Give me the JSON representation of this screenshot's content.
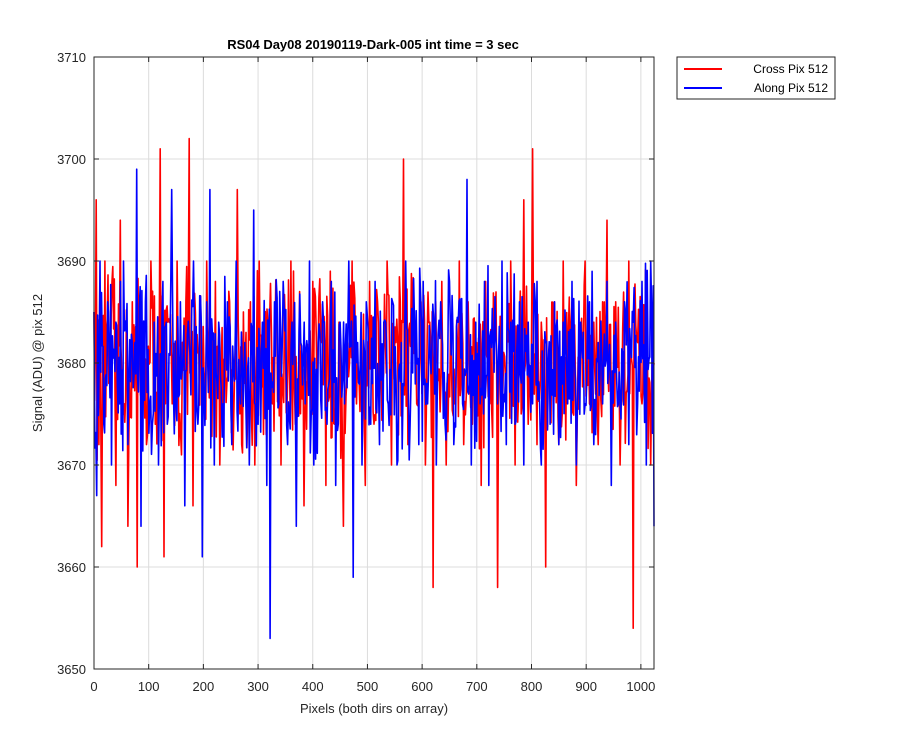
{
  "chart_data": {
    "type": "line",
    "title": "RS04 Day08 20190119-Dark-005 int time = 3 sec",
    "xlabel": "Pixels (both dirs on array)",
    "ylabel": "Signal (ADU) @ pix 512",
    "xlim": [
      0,
      1024
    ],
    "ylim": [
      3650,
      3710
    ],
    "xticks": [
      0,
      100,
      200,
      300,
      400,
      500,
      600,
      700,
      800,
      900,
      1000
    ],
    "yticks": [
      3650,
      3660,
      3670,
      3680,
      3690,
      3700,
      3710
    ],
    "grid": true,
    "legend_position": "outside-top-right",
    "series": [
      {
        "name": "Cross Pix 512",
        "color": "#ff0000",
        "mean": 3680,
        "noise_points": [
          [
            0,
            3685
          ],
          [
            4,
            3696
          ],
          [
            9,
            3672
          ],
          [
            14,
            3662
          ],
          [
            20,
            3690
          ],
          [
            27,
            3678
          ],
          [
            33,
            3688
          ],
          [
            40,
            3668
          ],
          [
            48,
            3694
          ],
          [
            55,
            3676
          ],
          [
            62,
            3664
          ],
          [
            70,
            3686
          ],
          [
            79,
            3660
          ],
          [
            88,
            3682
          ],
          [
            96,
            3672
          ],
          [
            104,
            3690
          ],
          [
            112,
            3674
          ],
          [
            121,
            3701
          ],
          [
            128,
            3661
          ],
          [
            135,
            3684
          ],
          [
            143,
            3676
          ],
          [
            152,
            3690
          ],
          [
            160,
            3671
          ],
          [
            168,
            3686
          ],
          [
            174,
            3702
          ],
          [
            181,
            3666
          ],
          [
            190,
            3681
          ],
          [
            198,
            3674
          ],
          [
            206,
            3690
          ],
          [
            214,
            3676
          ],
          [
            222,
            3688
          ],
          [
            230,
            3670
          ],
          [
            240,
            3682
          ],
          [
            248,
            3686
          ],
          [
            256,
            3676
          ],
          [
            262,
            3697
          ],
          [
            270,
            3672
          ],
          [
            278,
            3683
          ],
          [
            286,
            3686
          ],
          [
            294,
            3670
          ],
          [
            302,
            3690
          ],
          [
            310,
            3673
          ],
          [
            318,
            3684
          ],
          [
            326,
            3676
          ],
          [
            334,
            3686
          ],
          [
            342,
            3670
          ],
          [
            350,
            3683
          ],
          [
            360,
            3690
          ],
          [
            368,
            3674
          ],
          [
            376,
            3687
          ],
          [
            384,
            3666
          ],
          [
            392,
            3680
          ],
          [
            400,
            3688
          ],
          [
            408,
            3676
          ],
          [
            416,
            3682
          ],
          [
            424,
            3668
          ],
          [
            432,
            3689
          ],
          [
            440,
            3674
          ],
          [
            448,
            3684
          ],
          [
            456,
            3664
          ],
          [
            464,
            3682
          ],
          [
            472,
            3690
          ],
          [
            480,
            3676
          ],
          [
            488,
            3680
          ],
          [
            496,
            3668
          ],
          [
            504,
            3688
          ],
          [
            512,
            3674
          ],
          [
            520,
            3684
          ],
          [
            528,
            3678
          ],
          [
            536,
            3690
          ],
          [
            544,
            3670
          ],
          [
            552,
            3682
          ],
          [
            560,
            3686
          ],
          [
            566,
            3700
          ],
          [
            574,
            3672
          ],
          [
            582,
            3682
          ],
          [
            590,
            3676
          ],
          [
            598,
            3686
          ],
          [
            606,
            3670
          ],
          [
            614,
            3684
          ],
          [
            620,
            3658
          ],
          [
            628,
            3680
          ],
          [
            636,
            3688
          ],
          [
            644,
            3670
          ],
          [
            652,
            3684
          ],
          [
            660,
            3676
          ],
          [
            668,
            3690
          ],
          [
            676,
            3672
          ],
          [
            684,
            3686
          ],
          [
            692,
            3674
          ],
          [
            700,
            3682
          ],
          [
            708,
            3668
          ],
          [
            716,
            3688
          ],
          [
            724,
            3676
          ],
          [
            732,
            3682
          ],
          [
            738,
            3658
          ],
          [
            746,
            3684
          ],
          [
            754,
            3676
          ],
          [
            762,
            3690
          ],
          [
            770,
            3670
          ],
          [
            778,
            3684
          ],
          [
            786,
            3696
          ],
          [
            794,
            3674
          ],
          [
            802,
            3701
          ],
          [
            810,
            3672
          ],
          [
            818,
            3684
          ],
          [
            826,
            3660
          ],
          [
            834,
            3682
          ],
          [
            842,
            3686
          ],
          [
            850,
            3672
          ],
          [
            858,
            3690
          ],
          [
            866,
            3676
          ],
          [
            874,
            3686
          ],
          [
            882,
            3668
          ],
          [
            890,
            3682
          ],
          [
            898,
            3690
          ],
          [
            906,
            3676
          ],
          [
            914,
            3684
          ],
          [
            922,
            3672
          ],
          [
            930,
            3686
          ],
          [
            938,
            3694
          ],
          [
            946,
            3674
          ],
          [
            954,
            3686
          ],
          [
            962,
            3670
          ],
          [
            970,
            3682
          ],
          [
            978,
            3690
          ],
          [
            986,
            3654
          ],
          [
            994,
            3682
          ],
          [
            1002,
            3676
          ],
          [
            1010,
            3688
          ],
          [
            1018,
            3670
          ],
          [
            1024,
            3680
          ]
        ]
      },
      {
        "name": "Along Pix 512",
        "color": "#0000ff",
        "mean": 3680,
        "noise_points": [
          [
            0,
            3685
          ],
          [
            5,
            3667
          ],
          [
            11,
            3690
          ],
          [
            18,
            3674
          ],
          [
            25,
            3686
          ],
          [
            32,
            3670
          ],
          [
            40,
            3684
          ],
          [
            47,
            3676
          ],
          [
            54,
            3690
          ],
          [
            62,
            3672
          ],
          [
            70,
            3682
          ],
          [
            78,
            3699
          ],
          [
            86,
            3664
          ],
          [
            94,
            3686
          ],
          [
            102,
            3676
          ],
          [
            110,
            3684
          ],
          [
            118,
            3670
          ],
          [
            126,
            3688
          ],
          [
            134,
            3674
          ],
          [
            142,
            3697
          ],
          [
            150,
            3676
          ],
          [
            158,
            3686
          ],
          [
            166,
            3666
          ],
          [
            174,
            3682
          ],
          [
            182,
            3690
          ],
          [
            190,
            3674
          ],
          [
            198,
            3661
          ],
          [
            206,
            3686
          ],
          [
            212,
            3697
          ],
          [
            220,
            3670
          ],
          [
            228,
            3684
          ],
          [
            236,
            3676
          ],
          [
            244,
            3686
          ],
          [
            252,
            3672
          ],
          [
            260,
            3690
          ],
          [
            268,
            3676
          ],
          [
            276,
            3682
          ],
          [
            284,
            3670
          ],
          [
            292,
            3695
          ],
          [
            300,
            3674
          ],
          [
            308,
            3684
          ],
          [
            316,
            3668
          ],
          [
            322,
            3653
          ],
          [
            330,
            3686
          ],
          [
            338,
            3676
          ],
          [
            346,
            3688
          ],
          [
            354,
            3672
          ],
          [
            362,
            3684
          ],
          [
            370,
            3664
          ],
          [
            378,
            3682
          ],
          [
            386,
            3676
          ],
          [
            394,
            3690
          ],
          [
            402,
            3670
          ],
          [
            410,
            3682
          ],
          [
            418,
            3686
          ],
          [
            426,
            3674
          ],
          [
            434,
            3688
          ],
          [
            442,
            3668
          ],
          [
            450,
            3684
          ],
          [
            458,
            3676
          ],
          [
            466,
            3690
          ],
          [
            474,
            3659
          ],
          [
            482,
            3682
          ],
          [
            490,
            3670
          ],
          [
            498,
            3686
          ],
          [
            506,
            3674
          ],
          [
            514,
            3688
          ],
          [
            522,
            3672
          ],
          [
            530,
            3684
          ],
          [
            538,
            3676
          ],
          [
            546,
            3686
          ],
          [
            554,
            3670
          ],
          [
            562,
            3682
          ],
          [
            570,
            3690
          ],
          [
            578,
            3674
          ],
          [
            586,
            3684
          ],
          [
            594,
            3672
          ],
          [
            602,
            3688
          ],
          [
            610,
            3676
          ],
          [
            618,
            3682
          ],
          [
            626,
            3670
          ],
          [
            634,
            3686
          ],
          [
            642,
            3674
          ],
          [
            650,
            3688
          ],
          [
            658,
            3672
          ],
          [
            666,
            3684
          ],
          [
            674,
            3676
          ],
          [
            682,
            3698
          ],
          [
            690,
            3670
          ],
          [
            698,
            3684
          ],
          [
            706,
            3676
          ],
          [
            714,
            3688
          ],
          [
            722,
            3668
          ],
          [
            730,
            3682
          ],
          [
            738,
            3676
          ],
          [
            746,
            3690
          ],
          [
            754,
            3672
          ],
          [
            762,
            3684
          ],
          [
            770,
            3674
          ],
          [
            778,
            3686
          ],
          [
            786,
            3670
          ],
          [
            794,
            3684
          ],
          [
            802,
            3676
          ],
          [
            810,
            3688
          ],
          [
            818,
            3670
          ],
          [
            826,
            3682
          ],
          [
            834,
            3674
          ],
          [
            842,
            3686
          ],
          [
            850,
            3672
          ],
          [
            858,
            3684
          ],
          [
            866,
            3676
          ],
          [
            874,
            3688
          ],
          [
            882,
            3670
          ],
          [
            890,
            3684
          ],
          [
            898,
            3676
          ],
          [
            906,
            3686
          ],
          [
            914,
            3672
          ],
          [
            922,
            3682
          ],
          [
            930,
            3676
          ],
          [
            938,
            3688
          ],
          [
            946,
            3668
          ],
          [
            954,
            3684
          ],
          [
            962,
            3676
          ],
          [
            970,
            3686
          ],
          [
            978,
            3672
          ],
          [
            986,
            3684
          ],
          [
            994,
            3676
          ],
          [
            1002,
            3688
          ],
          [
            1010,
            3670
          ],
          [
            1018,
            3690
          ],
          [
            1024,
            3664
          ]
        ]
      }
    ]
  }
}
